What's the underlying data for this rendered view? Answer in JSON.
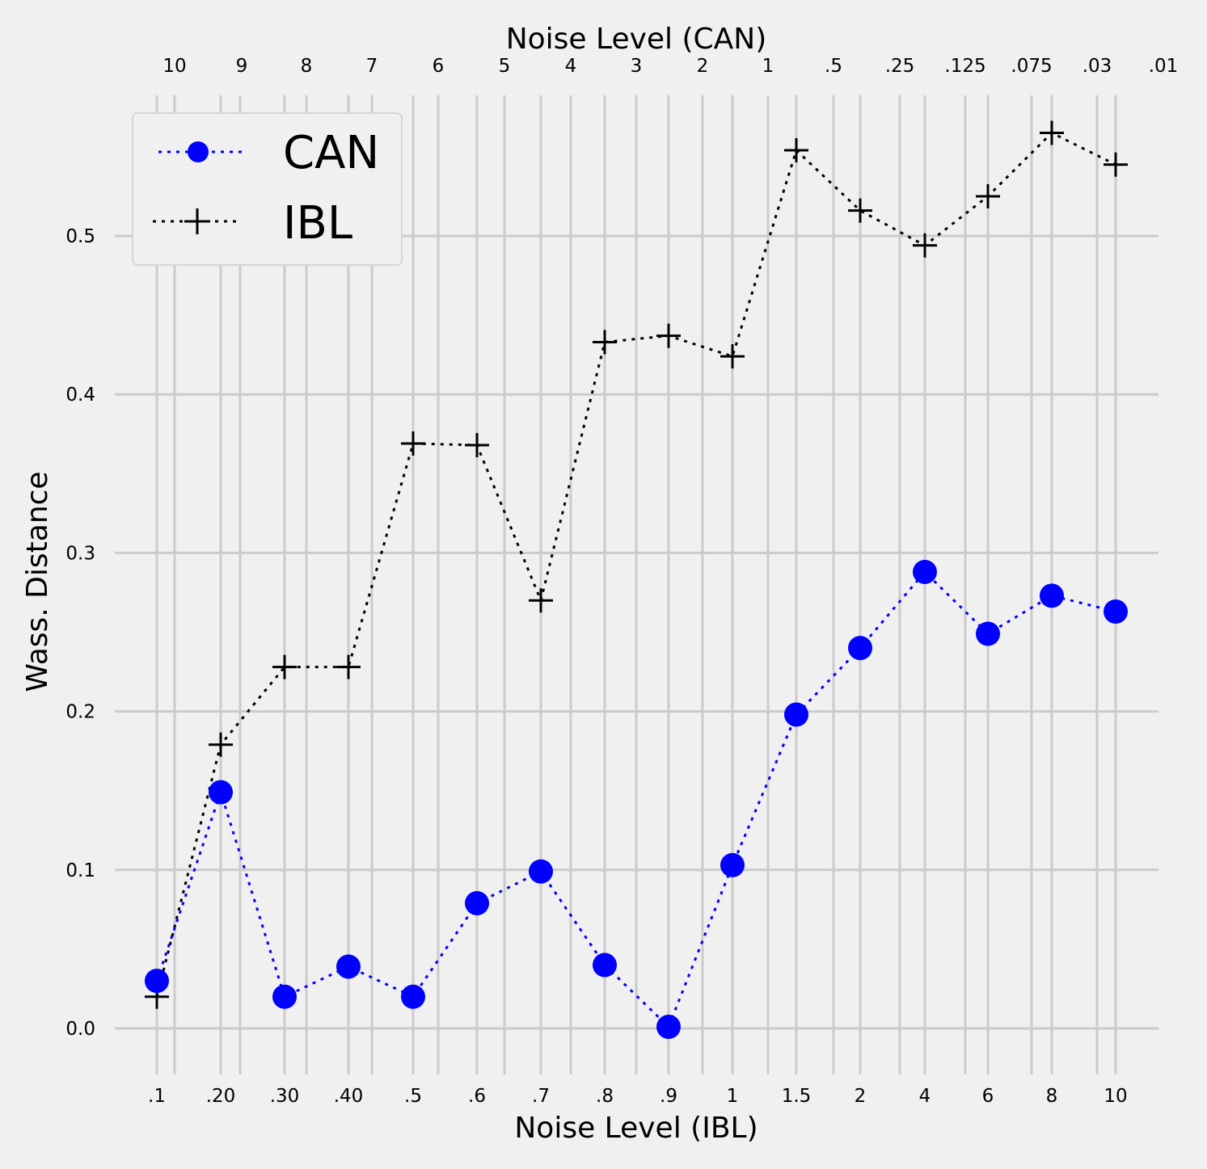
{
  "chart_data": {
    "type": "line",
    "xlabel": "Noise Level (IBL)",
    "x2label": "Noise Level (CAN)",
    "ylabel": "Wass. Distance",
    "ylim": [
      -0.025,
      0.585
    ],
    "yticks": [
      "0.0",
      "0.1",
      "0.2",
      "0.3",
      "0.4",
      "0.5"
    ],
    "ytick_values": [
      0.0,
      0.1,
      0.2,
      0.3,
      0.4,
      0.5
    ],
    "categories": [
      ".1",
      ".20",
      ".30",
      ".40",
      ".5",
      ".6",
      ".7",
      ".8",
      ".9",
      "1",
      "1.5",
      "2",
      "4",
      "6",
      "8",
      "10"
    ],
    "top_categories": [
      "10",
      "9",
      "8",
      "7",
      "6",
      "5",
      "4",
      "3",
      "2",
      "1",
      ".5",
      ".25",
      ".125",
      ".075",
      ".03",
      ".01"
    ],
    "grid": true,
    "legend_position": "top-left",
    "series": [
      {
        "name": "CAN",
        "color": "#0000ff",
        "marker": "circle",
        "linestyle": "dotted",
        "values": [
          0.03,
          0.149,
          0.02,
          0.039,
          0.02,
          0.079,
          0.099,
          0.04,
          0.001,
          0.103,
          0.198,
          0.24,
          0.288,
          0.249,
          0.273,
          0.263
        ]
      },
      {
        "name": "IBL",
        "color": "#000000",
        "marker": "plus",
        "linestyle": "dotted",
        "values": [
          0.02,
          0.179,
          0.228,
          0.228,
          0.369,
          0.368,
          0.27,
          0.433,
          0.437,
          0.424,
          0.554,
          0.516,
          0.494,
          0.525,
          0.565,
          0.545
        ]
      }
    ]
  }
}
